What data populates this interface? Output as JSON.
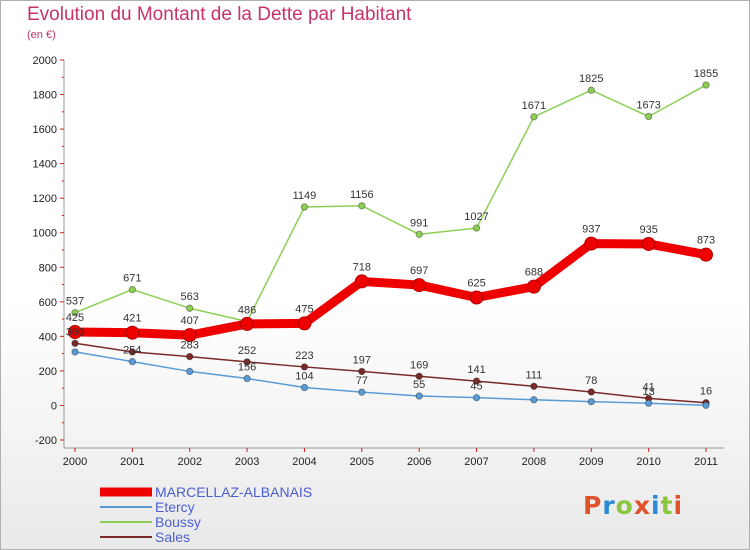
{
  "title": "Evolution du Montant de la Dette par Habitant",
  "subtitle": "(en €)",
  "logo": {
    "text": "Proxiti",
    "letters": [
      {
        "ch": "P",
        "color": "#e0532a"
      },
      {
        "ch": "r",
        "color": "#2a8ad6"
      },
      {
        "ch": "o",
        "color": "#8cc63f"
      },
      {
        "ch": "x",
        "color": "#e0532a"
      },
      {
        "ch": "i",
        "color": "#2a8ad6"
      },
      {
        "ch": "t",
        "color": "#8cc63f"
      },
      {
        "ch": "i",
        "color": "#e0532a"
      }
    ]
  },
  "chart_data": {
    "type": "line",
    "title": "Evolution du Montant de la Dette par Habitant",
    "subtitle": "(en €)",
    "categories": [
      "2000",
      "2001",
      "2002",
      "2003",
      "2004",
      "2005",
      "2006",
      "2007",
      "2008",
      "2009",
      "2010",
      "2011"
    ],
    "yticks": [
      "2000",
      "1800",
      "1600",
      "1400",
      "1200",
      "1000",
      "800",
      "600",
      "400",
      "200",
      "0",
      "-200"
    ],
    "ylim": [
      -200,
      2000
    ],
    "grid": false,
    "legend_position": "bottom-left",
    "series": [
      {
        "name": "MARCELLAZ-ALBANAIS",
        "color": "#ee0000",
        "values": [
          425,
          421,
          407,
          472,
          475,
          718,
          697,
          625,
          688,
          937,
          935,
          873
        ],
        "labels": [
          "425",
          "421",
          "407",
          "",
          "475",
          "718",
          "697",
          "625",
          "688",
          "937",
          "935",
          "873"
        ]
      },
      {
        "name": "Etercy",
        "color": "#5b9bd5",
        "values": [
          310,
          254,
          197,
          156,
          104,
          77,
          55,
          45,
          33,
          22,
          13,
          1
        ],
        "labels": [
          "",
          "254",
          "",
          "156",
          "104",
          "77",
          "55",
          "45",
          "",
          "",
          "13",
          ""
        ]
      },
      {
        "name": "Boussy",
        "color": "#8ccf55",
        "values": [
          537,
          671,
          563,
          486,
          1149,
          1156,
          991,
          1027,
          1671,
          1825,
          1673,
          1855
        ],
        "labels": [
          "537",
          "671",
          "563",
          "486",
          "1149",
          "1156",
          "991",
          "1027",
          "1671",
          "1825",
          "1673",
          "1855"
        ]
      },
      {
        "name": "Sales",
        "color": "#7a2a2a",
        "values": [
          360,
          310,
          283,
          252,
          223,
          197,
          169,
          141,
          111,
          78,
          41,
          16
        ],
        "labels": [
          "360",
          "",
          "283",
          "252",
          "223",
          "197",
          "169",
          "141",
          "111",
          "78",
          "41",
          "16"
        ]
      }
    ]
  }
}
